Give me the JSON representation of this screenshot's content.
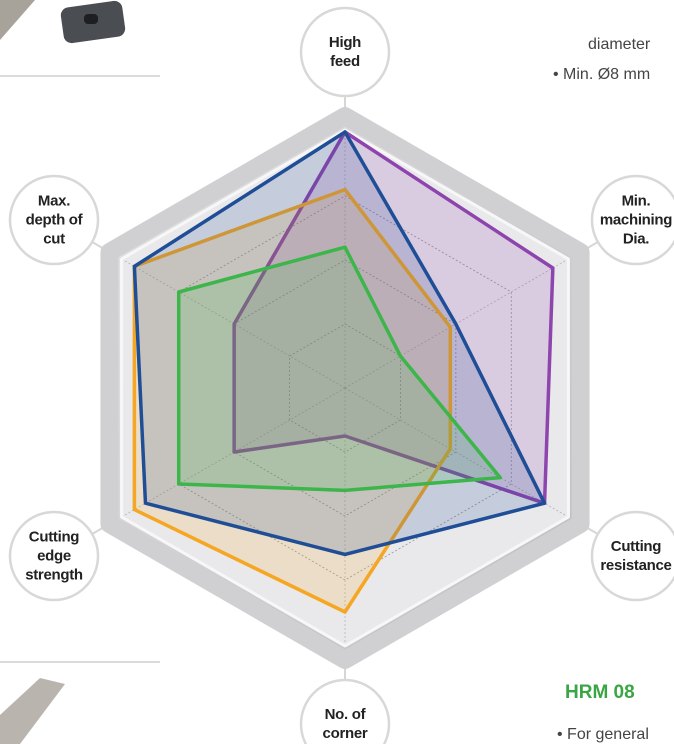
{
  "chart_data": {
    "type": "radar",
    "categories": [
      "High\nfeed",
      "Min.\nmachining\nDia.",
      "Cutting\nresistance",
      "No. of\ncorner",
      "Cutting\nedge\nstrength",
      "Max.\ndepth of\ncut"
    ],
    "series": [
      {
        "color": "#8e44ad",
        "values": [
          4.0,
          3.75,
          3.6,
          0.75,
          2.0,
          2.0
        ]
      },
      {
        "color": "#f5a623",
        "values": [
          3.1,
          1.9,
          1.9,
          3.5,
          3.8,
          3.8
        ]
      },
      {
        "color": "#1f4e96",
        "values": [
          4.0,
          2.0,
          3.6,
          2.6,
          3.6,
          3.8
        ]
      },
      {
        "color": "#3cb54a",
        "values": [
          2.2,
          1.0,
          2.8,
          1.6,
          3.0,
          3.0
        ]
      }
    ],
    "ylim": [
      0,
      4
    ],
    "yticks": [
      1,
      2,
      3
    ],
    "grid": true
  },
  "side_text": {
    "top_line": "diameter",
    "top_bullet": "• Min. Ø8 mm",
    "model": "HRM 08",
    "model_bullet": "• For general"
  }
}
